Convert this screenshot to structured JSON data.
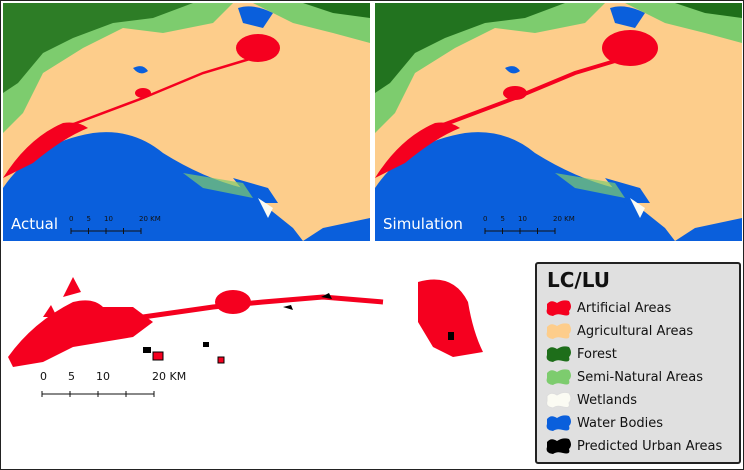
{
  "panels": [
    {
      "label": "Actual"
    },
    {
      "label": "Simulation"
    }
  ],
  "scale_bar": {
    "ticks": [
      "0",
      "5",
      "10",
      "20 KM"
    ]
  },
  "legend": {
    "title": "LC/LU",
    "items": [
      {
        "label": "Artificial Areas",
        "color": "#f5001f"
      },
      {
        "label": "Agricultural Areas",
        "color": "#fdcd8b"
      },
      {
        "label": "Forest",
        "color": "#1e6e1a"
      },
      {
        "label": "Semi-Natural Areas",
        "color": "#7dcc6e"
      },
      {
        "label": "Wetlands",
        "color": "#fbfbf3"
      },
      {
        "label": "Water Bodies",
        "color": "#0a5fdc"
      },
      {
        "label": "Predicted Urban Areas",
        "color": "#000000"
      }
    ]
  }
}
